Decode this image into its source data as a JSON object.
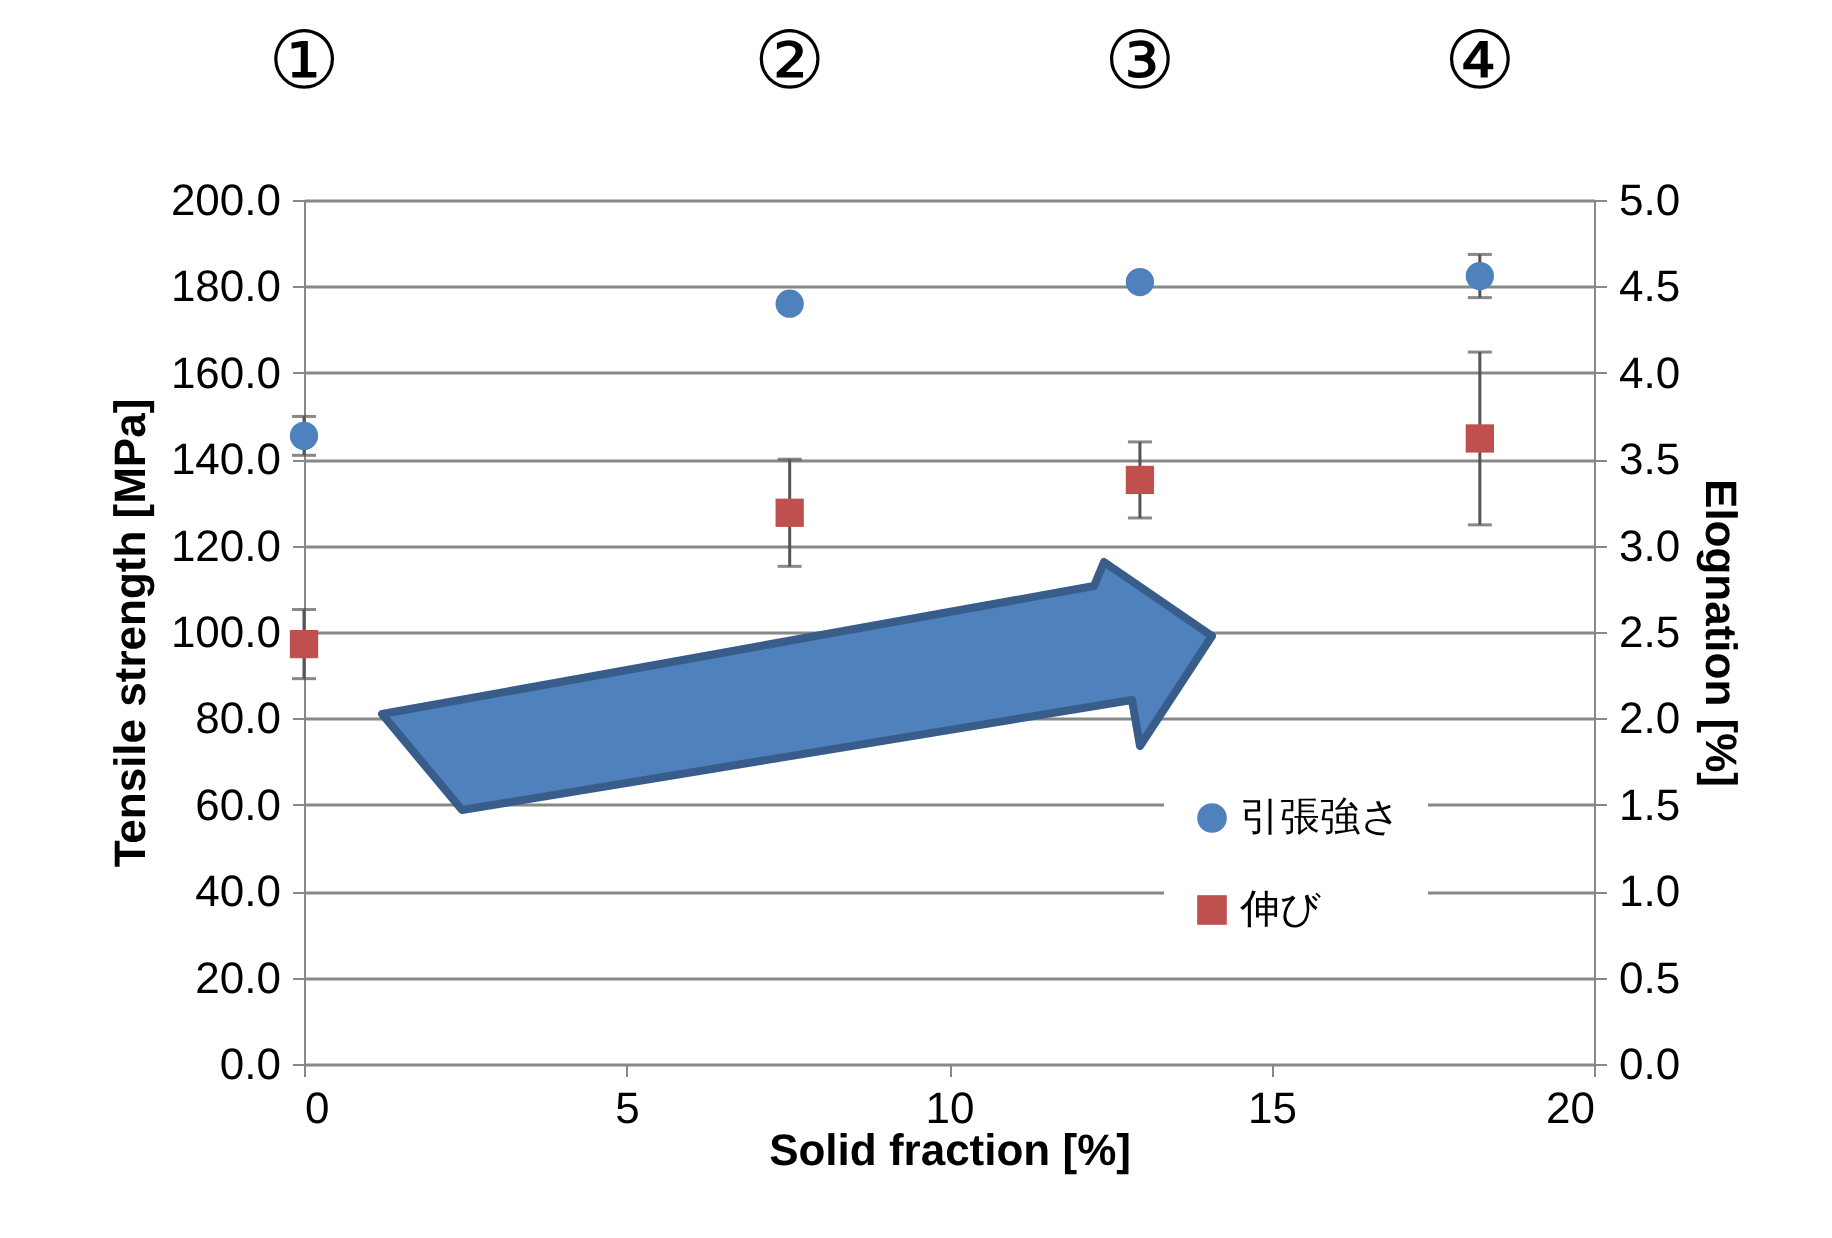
{
  "chart_data": {
    "type": "scatter",
    "xlabel": "Solid fraction  [%]",
    "ylabel": "Tensile strength [MPa]",
    "y2label": "Elognation [%]",
    "x": [
      0,
      7.53,
      12.96,
      18.23
    ],
    "series": [
      {
        "name": "引張強さ",
        "color": "#4f81bd",
        "marker": "circle",
        "values": [
          145.4,
          176,
          181,
          182.4
        ],
        "errors": [
          4.5,
          null,
          null,
          5
        ]
      },
      {
        "name": "伸び",
        "color": "#c0504d",
        "marker": "square",
        "axis": "y2",
        "values": [
          2.43,
          3.19,
          3.38,
          3.62
        ],
        "errors": [
          0.2,
          0.31,
          0.22,
          0.5
        ]
      }
    ],
    "xlim": [
      0,
      20
    ],
    "xticks": [
      0,
      5,
      10,
      15,
      20
    ],
    "ylim": [
      0,
      200
    ],
    "yticks": [
      {
        "value": 0,
        "label": "0.0"
      },
      {
        "value": 20,
        "label": "20.0"
      },
      {
        "value": 40,
        "label": "40.0"
      },
      {
        "value": 60,
        "label": "60.0"
      },
      {
        "value": 80,
        "label": "80.0"
      },
      {
        "value": 100,
        "label": "100.0"
      },
      {
        "value": 120,
        "label": "120.0"
      },
      {
        "value": 140,
        "label": "140.0"
      },
      {
        "value": 160,
        "label": "160.0"
      },
      {
        "value": 180,
        "label": "180.0"
      },
      {
        "value": 200,
        "label": "200.0"
      }
    ],
    "y2lim": [
      0,
      5
    ],
    "y2ticks": [
      {
        "value": 0,
        "label": "0.0"
      },
      {
        "value": 0.5,
        "label": "0.5"
      },
      {
        "value": 1,
        "label": "1.0"
      },
      {
        "value": 1.5,
        "label": "1.5"
      },
      {
        "value": 2,
        "label": "2.0"
      },
      {
        "value": 2.5,
        "label": "2.5"
      },
      {
        "value": 3,
        "label": "3.0"
      },
      {
        "value": 3.5,
        "label": "3.5"
      },
      {
        "value": 4,
        "label": "4.0"
      },
      {
        "value": 4.5,
        "label": "4.5"
      },
      {
        "value": 5,
        "label": "5.0"
      }
    ],
    "grid": "y",
    "legend": "bottom right",
    "annotations": [
      "①",
      "②",
      "③",
      "④"
    ]
  }
}
